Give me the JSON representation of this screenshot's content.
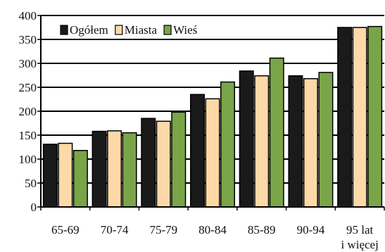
{
  "chart_data": {
    "type": "bar",
    "title": "",
    "xlabel": "",
    "ylabel": "",
    "ylim": [
      0,
      400
    ],
    "yticks": [
      0,
      50,
      100,
      150,
      200,
      250,
      300,
      350,
      400
    ],
    "grid": true,
    "legend_position": "top-left",
    "categories": [
      [
        "65-69"
      ],
      [
        "70-74"
      ],
      [
        "75-79"
      ],
      [
        "80-84"
      ],
      [
        "85-89"
      ],
      [
        "90-94"
      ],
      [
        "95 lat",
        "i więcej"
      ]
    ],
    "series": [
      {
        "name": "Ogółem",
        "color": "#1a1a1a",
        "values": [
          131,
          158,
          185,
          235,
          284,
          274,
          375
        ]
      },
      {
        "name": "Miasta",
        "color": "#fcd9a6",
        "values": [
          133,
          159,
          179,
          226,
          274,
          268,
          375
        ]
      },
      {
        "name": "Wieś",
        "color": "#79a548",
        "values": [
          118,
          155,
          198,
          261,
          311,
          281,
          377
        ]
      }
    ]
  }
}
